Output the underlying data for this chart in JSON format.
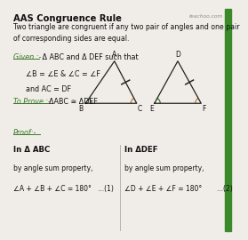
{
  "title": "AAS Congruence Rule",
  "subtitle": "Two triangle are congruent if any two pair of angles and one pair\nof corresponding sides are equal.",
  "given_label": "Given :-",
  "given_text": " Δ ABC and Δ DEF such that",
  "given_line1": "∠B = ∠E & ∠C = ∠F",
  "given_line2": "and AC = DF",
  "prove_label": "To Prove :-",
  "prove_text": "ΔABC ≅ ΔDEF",
  "proof_label": "Proof:-",
  "col1_header": "In Δ ABC",
  "col1_line1": "by angle sum property,",
  "col1_line2": "∠A + ∠B + ∠C = 180°   ...(1)",
  "col2_header": "In ΔDEF",
  "col2_line1": "by angle sum property,",
  "col2_line2": "∠D + ∠E + ∠F = 180°       ...(2)",
  "bg_color": "#f0ede8",
  "title_color": "#111111",
  "green_color": "#3a7a2a",
  "underline_color": "#3a7a2a",
  "watermark": "teachoo.com",
  "tri1": {
    "A": [
      0.475,
      0.765
    ],
    "B": [
      0.345,
      0.575
    ],
    "C": [
      0.575,
      0.575
    ]
  },
  "tri2": {
    "D": [
      0.76,
      0.765
    ],
    "E": [
      0.655,
      0.575
    ],
    "F": [
      0.865,
      0.575
    ]
  },
  "tick_color": "#222222",
  "arc_green": "#3a7a2a",
  "arc_orange": "#cc7722",
  "divider_color": "#aaaaaa",
  "line_color": "#222222"
}
